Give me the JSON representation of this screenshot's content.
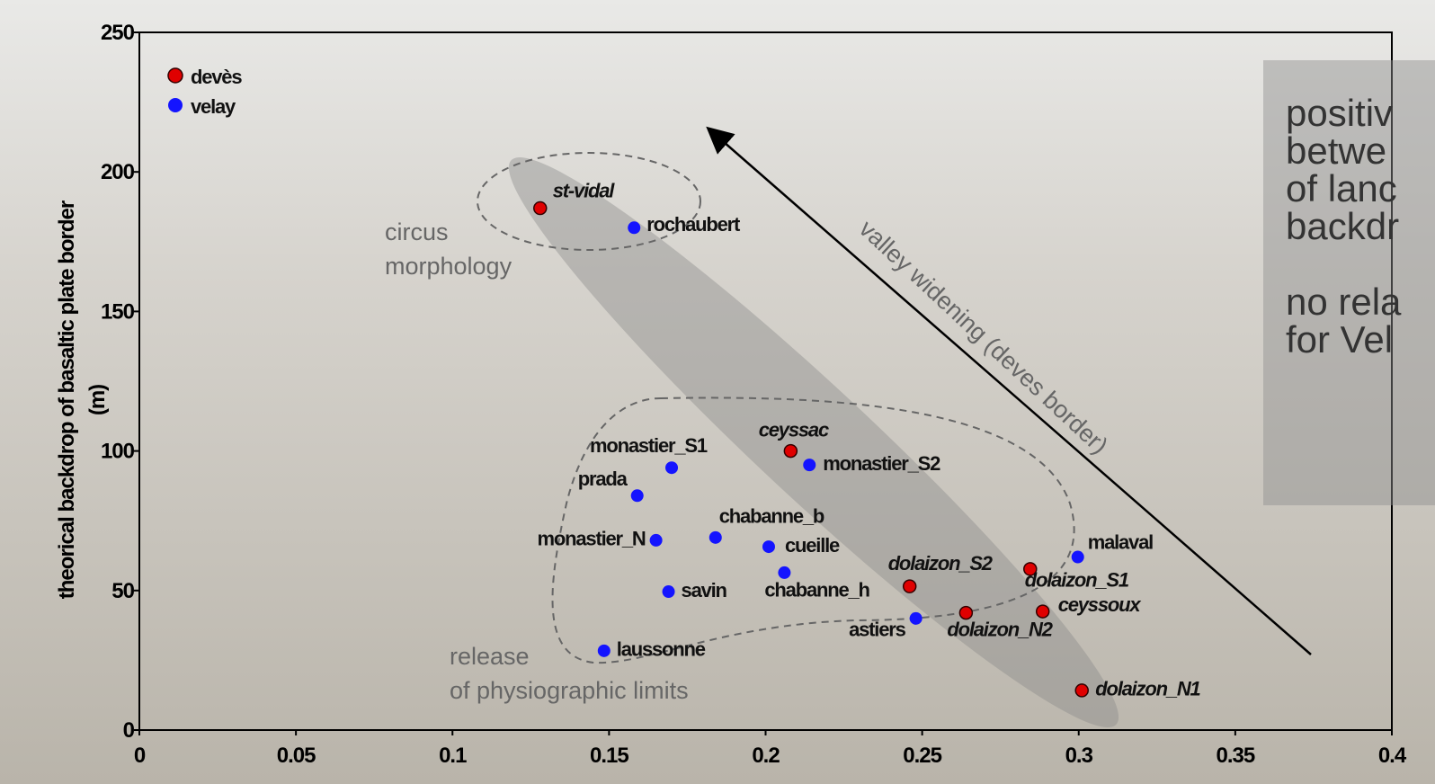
{
  "chart_data": {
    "type": "scatter",
    "xlim": [
      0,
      0.4
    ],
    "ylim": [
      0,
      250
    ],
    "xticks": [
      0,
      0.05,
      0.1,
      0.15,
      0.2,
      0.25,
      0.3,
      0.35,
      0.4
    ],
    "yticks": [
      0,
      50,
      100,
      150,
      200,
      250
    ],
    "ylabel": [
      "theorical backdrop of basaltic plate border",
      "(m)"
    ],
    "legend": "top-left",
    "series": [
      {
        "name": "devès",
        "color": "#e00000",
        "labels": [
          "st-vidal",
          "ceyssac",
          "dolaizon_S2",
          "dolaizon_N2",
          "dolaizon_S1",
          "ceyssoux",
          "dolaizon_N1"
        ],
        "x": [
          0.128,
          0.208,
          0.246,
          0.264,
          0.2845,
          0.2885,
          0.301
        ],
        "values": [
          187,
          100,
          51.5,
          42,
          57.7,
          42.5,
          14.2
        ]
      },
      {
        "name": "velay",
        "color": "#1414ff",
        "labels": [
          "rochaubert",
          "monastier_S1",
          "monastier_S2",
          "prada",
          "chabanne_b",
          "monastier_N",
          "cueille",
          "chabanne_h",
          "savin",
          "malaval",
          "astiers",
          "laussonne"
        ],
        "x": [
          0.158,
          0.17,
          0.214,
          0.159,
          0.184,
          0.165,
          0.201,
          0.206,
          0.169,
          0.2997,
          0.248,
          0.1484
        ],
        "values": [
          180,
          94,
          95,
          84,
          69,
          68,
          65.7,
          56.4,
          49.6,
          62,
          40,
          28.4
        ]
      }
    ],
    "annotations": [
      {
        "lines": [
          "circus",
          "morphology"
        ]
      },
      {
        "lines": [
          "release",
          "of physiographic limits"
        ]
      },
      {
        "lines": [
          "valley widening (deves border)"
        ]
      }
    ],
    "note": [
      [
        "positiv",
        "betwe",
        "of lanc",
        "backdr"
      ],
      [
        "no rela",
        "for Vel"
      ]
    ]
  }
}
